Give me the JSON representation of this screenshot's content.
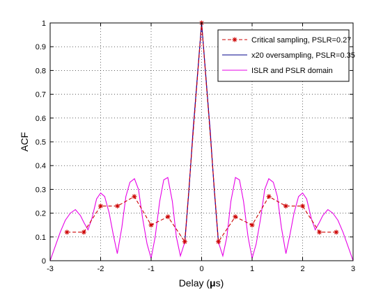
{
  "chart_data": {
    "type": "line",
    "xlabel": "Delay (",
    "xlabel_mu": "μ",
    "xlabel_unit": "s)",
    "ylabel": "ACF",
    "xlim": [
      -3,
      3
    ],
    "ylim": [
      0,
      1
    ],
    "xticks": [
      "-3",
      "-2",
      "-1",
      "0",
      "1",
      "2",
      "3"
    ],
    "yticks": [
      "0",
      "0.1",
      "0.2",
      "0.3",
      "0.4",
      "0.5",
      "0.6",
      "0.7",
      "0.8",
      "0.9",
      "1"
    ],
    "grid": true,
    "legend_position": "top-right",
    "series": [
      {
        "name": "Critical sampling, PSLR=0.27",
        "color": "#cc0000",
        "style": "dashed-star",
        "x": [
          -2.667,
          -2.333,
          -2.0,
          -1.667,
          -1.333,
          -1.0,
          -0.667,
          -0.333,
          0.0,
          0.333,
          0.667,
          1.0,
          1.333,
          1.667,
          2.0,
          2.333,
          2.667
        ],
        "y": [
          0.12,
          0.12,
          0.23,
          0.23,
          0.27,
          0.15,
          0.185,
          0.08,
          1.0,
          0.08,
          0.185,
          0.15,
          0.27,
          0.23,
          0.23,
          0.12,
          0.12
        ]
      },
      {
        "name": "x20 oversampling, PSLR=0.35",
        "color": "#00008b",
        "style": "solid",
        "x": [
          -0.333,
          -0.25,
          -0.167,
          -0.083,
          0.0,
          0.083,
          0.167,
          0.25,
          0.333
        ],
        "y": [
          0.08,
          0.3,
          0.55,
          0.78,
          1.0,
          0.78,
          0.55,
          0.3,
          0.08
        ]
      },
      {
        "name": "ISLR and PSLR domain",
        "color": "#e600e6",
        "style": "solid",
        "x": [
          -3.0,
          -2.9,
          -2.8,
          -2.7,
          -2.6,
          -2.5,
          -2.4,
          -2.33,
          -2.25,
          -2.17,
          -2.08,
          -2.0,
          -1.92,
          -1.83,
          -1.75,
          -1.67,
          -1.58,
          -1.5,
          -1.42,
          -1.33,
          -1.25,
          -1.17,
          -1.08,
          -1.0,
          -0.92,
          -0.83,
          -0.75,
          -0.67,
          -0.58,
          -0.5,
          -0.42,
          -0.33,
          -0.25,
          -0.17,
          -0.08,
          0.0,
          0.08,
          0.17,
          0.25,
          0.33,
          0.42,
          0.5,
          0.58,
          0.67,
          0.75,
          0.83,
          0.92,
          1.0,
          1.08,
          1.17,
          1.25,
          1.33,
          1.42,
          1.5,
          1.58,
          1.67,
          1.75,
          1.83,
          1.92,
          2.0,
          2.08,
          2.17,
          2.25,
          2.33,
          2.4,
          2.5,
          2.6,
          2.7,
          2.8,
          2.9,
          3.0
        ],
        "y": [
          0.0,
          0.06,
          0.12,
          0.17,
          0.2,
          0.215,
          0.19,
          0.16,
          0.13,
          0.18,
          0.26,
          0.285,
          0.27,
          0.2,
          0.11,
          0.03,
          0.14,
          0.27,
          0.33,
          0.345,
          0.3,
          0.18,
          0.07,
          0.01,
          0.1,
          0.25,
          0.34,
          0.35,
          0.25,
          0.1,
          0.02,
          0.08,
          0.3,
          0.55,
          0.78,
          1.0,
          0.78,
          0.55,
          0.3,
          0.08,
          0.02,
          0.1,
          0.25,
          0.35,
          0.34,
          0.25,
          0.1,
          0.01,
          0.07,
          0.18,
          0.3,
          0.345,
          0.33,
          0.27,
          0.14,
          0.03,
          0.11,
          0.2,
          0.27,
          0.285,
          0.26,
          0.18,
          0.13,
          0.16,
          0.19,
          0.215,
          0.2,
          0.17,
          0.12,
          0.06,
          0.0
        ]
      }
    ]
  }
}
